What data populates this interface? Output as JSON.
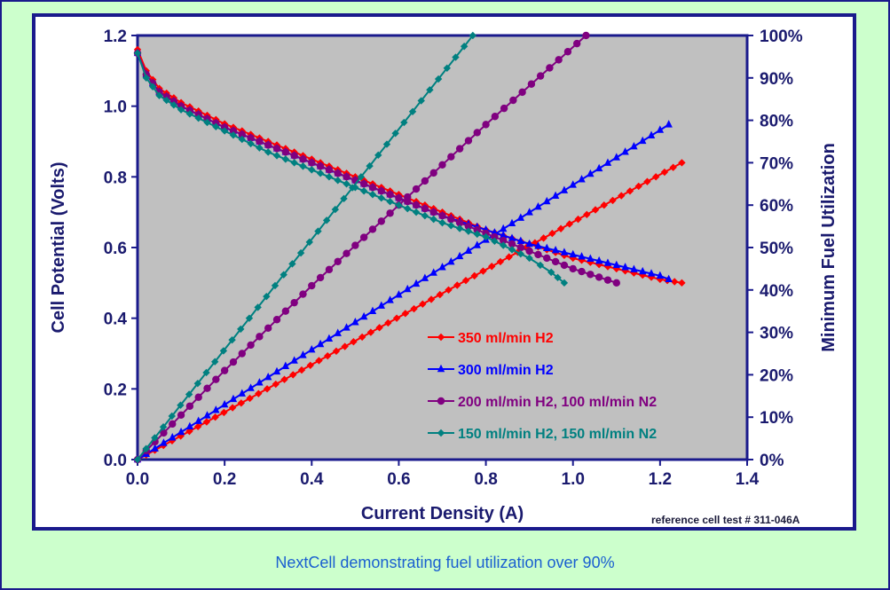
{
  "chart_data": {
    "type": "line",
    "title": "",
    "xlabel": "Current Density (A)",
    "ylabel": "Cell Potential (Volts)",
    "y2label": "Minimum Fuel Utilization",
    "xlim": [
      0,
      1.4
    ],
    "ylim": [
      0,
      1.2
    ],
    "y2lim": [
      0,
      1.0
    ],
    "x_ticks": [
      "0.0",
      "0.2",
      "0.4",
      "0.6",
      "0.8",
      "1.0",
      "1.2",
      "1.4"
    ],
    "y_ticks": [
      "0.0",
      "0.2",
      "0.4",
      "0.6",
      "0.8",
      "1.0",
      "1.2"
    ],
    "y2_ticks": [
      "0%",
      "10%",
      "20%",
      "30%",
      "40%",
      "50%",
      "60%",
      "70%",
      "80%",
      "90%",
      "100%"
    ],
    "grid": false,
    "legend_placement": "lower-right",
    "series": [
      {
        "name": "350 ml/min H2",
        "color": "#ff0000",
        "marker": "diamond",
        "potential": {
          "x": [
            0,
            0.02,
            0.05,
            0.1,
            0.2,
            0.3,
            0.4,
            0.5,
            0.6,
            0.7,
            0.8,
            0.9,
            1.0,
            1.1,
            1.2,
            1.25
          ],
          "y": [
            1.16,
            1.1,
            1.05,
            1.01,
            0.95,
            0.9,
            0.85,
            0.8,
            0.75,
            0.7,
            0.65,
            0.61,
            0.57,
            0.54,
            0.51,
            0.5
          ]
        },
        "utilization": {
          "x": [
            0,
            1.25
          ],
          "y": [
            0,
            0.7
          ]
        }
      },
      {
        "name": "300 ml/min H2",
        "color": "#0000ff",
        "marker": "triangle",
        "potential": {
          "x": [
            0,
            0.02,
            0.05,
            0.1,
            0.2,
            0.3,
            0.4,
            0.5,
            0.6,
            0.7,
            0.8,
            0.9,
            1.0,
            1.1,
            1.2,
            1.22
          ],
          "y": [
            1.15,
            1.09,
            1.04,
            1.0,
            0.94,
            0.89,
            0.84,
            0.79,
            0.74,
            0.69,
            0.65,
            0.61,
            0.58,
            0.55,
            0.52,
            0.51
          ]
        },
        "utilization": {
          "x": [
            0,
            1.22
          ],
          "y": [
            0,
            0.79
          ]
        }
      },
      {
        "name": "200 ml/min H2, 100 ml/min N2",
        "color": "#800080",
        "marker": "circle",
        "potential": {
          "x": [
            0,
            0.02,
            0.05,
            0.1,
            0.2,
            0.3,
            0.4,
            0.5,
            0.6,
            0.7,
            0.8,
            0.9,
            1.0,
            1.1
          ],
          "y": [
            1.15,
            1.09,
            1.04,
            1.0,
            0.94,
            0.89,
            0.84,
            0.79,
            0.74,
            0.69,
            0.64,
            0.59,
            0.54,
            0.5
          ]
        },
        "utilization": {
          "x": [
            0,
            0.2,
            0.4,
            0.6,
            0.8,
            1.03
          ],
          "y": [
            0,
            0.21,
            0.41,
            0.6,
            0.79,
            1.0
          ]
        }
      },
      {
        "name": "150 ml/min H2, 150 ml/min N2",
        "color": "#008080",
        "marker": "diamond",
        "potential": {
          "x": [
            0,
            0.02,
            0.05,
            0.1,
            0.2,
            0.3,
            0.4,
            0.5,
            0.6,
            0.7,
            0.8,
            0.9,
            0.95,
            0.98
          ],
          "y": [
            1.15,
            1.08,
            1.03,
            0.99,
            0.93,
            0.87,
            0.82,
            0.77,
            0.72,
            0.67,
            0.63,
            0.57,
            0.53,
            0.5
          ]
        },
        "utilization": {
          "x": [
            0,
            0.77
          ],
          "y": [
            0,
            1.0
          ]
        }
      }
    ]
  },
  "reference_note": "reference cell test # 311-046A",
  "caption": "NextCell demonstrating fuel utilization over 90%",
  "colors": {
    "frame_bg": "#ccffcc",
    "plot_bg": "#c0c0c0",
    "axis": "#1a1a8c",
    "caption": "#1a5fd0"
  }
}
